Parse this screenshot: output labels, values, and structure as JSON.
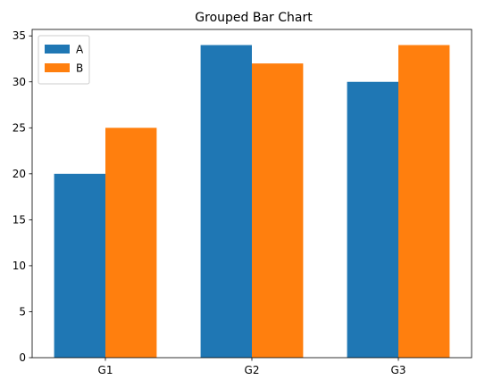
{
  "chart_data": {
    "type": "bar",
    "title": "Grouped Bar Chart",
    "xlabel": "",
    "ylabel": "",
    "categories": [
      "G1",
      "G2",
      "G3"
    ],
    "series": [
      {
        "name": "A",
        "values": [
          20,
          34,
          30
        ],
        "color": "#1f77b4"
      },
      {
        "name": "B",
        "values": [
          25,
          32,
          34
        ],
        "color": "#ff7f0e"
      }
    ],
    "ylim": [
      0,
      35.7
    ],
    "yticks": [
      0,
      5,
      10,
      15,
      20,
      25,
      30,
      35
    ],
    "grid": false,
    "legend_position": "top-left"
  }
}
